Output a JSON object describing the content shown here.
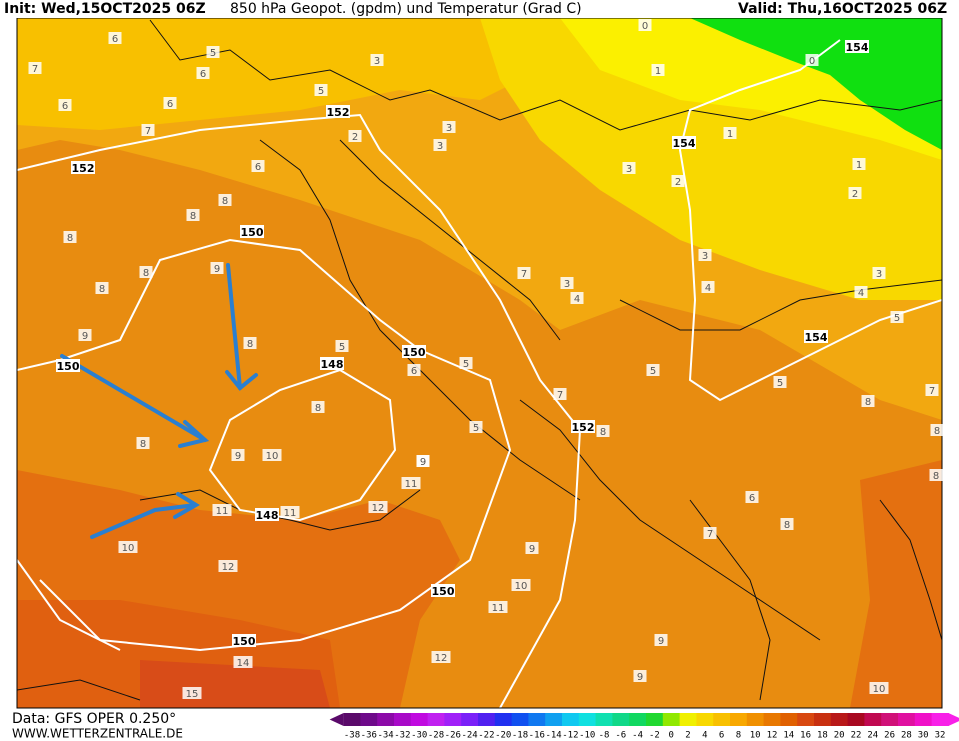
{
  "header": {
    "init": "Init: Wed,15OCT2025 06Z",
    "title": "850 hPa Geopot. (gpdm) und Temperatur (Grad C)",
    "valid": "Valid: Thu,16OCT2025 06Z"
  },
  "footer": {
    "source": "Data: GFS OPER 0.250°",
    "website": "WWW.WETTERZENTRALE.DE"
  },
  "temperature_labels": [
    "6",
    "7",
    "6",
    "6",
    "6",
    "7",
    "6",
    "8",
    "8",
    "8",
    "8",
    "9",
    "8",
    "9",
    "8",
    "8",
    "9",
    "10",
    "8",
    "6",
    "5",
    "5",
    "9",
    "11",
    "12",
    "11",
    "11",
    "12",
    "9",
    "11",
    "12",
    "14",
    "15",
    "7",
    "8",
    "7",
    "3",
    "3",
    "3",
    "3",
    "2",
    "3",
    "4",
    "3",
    "4",
    "1",
    "1",
    "1",
    "2",
    "3",
    "4",
    "5",
    "5",
    "5",
    "7",
    "8",
    "8",
    "8",
    "6",
    "8",
    "7",
    "9",
    "9",
    "9",
    "10",
    "0",
    "0",
    "5",
    "5",
    "2",
    "5",
    "10",
    "10"
  ],
  "geopotential_labels": [
    "152",
    "152",
    "150",
    "154",
    "154",
    "154",
    "150",
    "148",
    "150",
    "152",
    "148",
    "150",
    "150"
  ],
  "colorbar": {
    "ticks": [
      -38,
      -36,
      -34,
      -32,
      -30,
      -28,
      -26,
      -24,
      -22,
      -20,
      -18,
      -16,
      -14,
      -12,
      -10,
      -8,
      -6,
      -4,
      -2,
      0,
      2,
      4,
      6,
      8,
      10,
      12,
      14,
      16,
      18,
      20,
      22,
      24,
      26,
      28,
      30,
      32
    ],
    "colors": [
      "#5a0a6a",
      "#6e0a8a",
      "#8c0aa8",
      "#a80ac8",
      "#c00ae0",
      "#c020f0",
      "#a020f8",
      "#7a20f8",
      "#5020f0",
      "#2030f0",
      "#1050f0",
      "#1078f0",
      "#10a0f0",
      "#10c8f0",
      "#10e0e0",
      "#10e0b0",
      "#10d888",
      "#10d860",
      "#20d830",
      "#90e800",
      "#f0f000",
      "#f8d800",
      "#f8c000",
      "#f8a800",
      "#f09000",
      "#e87800",
      "#e06000",
      "#d84810",
      "#c83010",
      "#b81818",
      "#a80820",
      "#c00850",
      "#d01078",
      "#e010a0",
      "#f010c8",
      "#f820e8"
    ]
  }
}
